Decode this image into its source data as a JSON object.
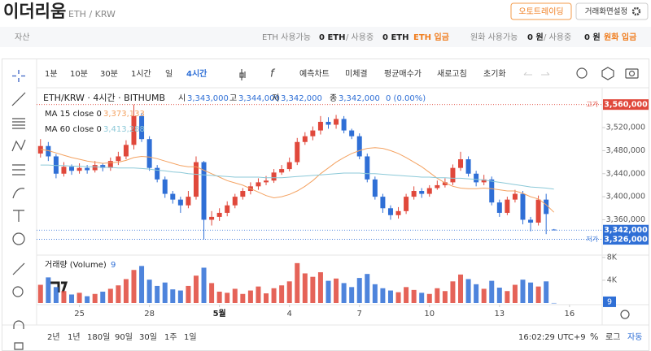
{
  "header": {
    "title": "이더리움",
    "pair": "ETH / KRW",
    "buttons": [
      "오토트레이딩",
      "거래화면설정"
    ]
  },
  "assets": {
    "label": "자산",
    "items": [
      "ETH 사용가능",
      "0 ETH",
      "/ 사용중",
      "0 ETH",
      "ETH 입금",
      "원화 사용가능",
      "0 원",
      "/ 사용중",
      "0 원",
      "원화 입금"
    ]
  },
  "toolbar": {
    "intervals": [
      "1분",
      "10분",
      "30분",
      "1시간",
      "일",
      "4시간"
    ],
    "active": 5,
    "actions": [
      "예측차트",
      "미체결",
      "평균매수가",
      "새로고침",
      "초기화"
    ]
  },
  "ranges": [
    "2년",
    "1년",
    "180일",
    "90일",
    "30일",
    "1주",
    "1일"
  ],
  "footer": {
    "time": "16:02:29 UTC+9",
    "percent": "%",
    "log": "로그",
    "auto": "자동"
  },
  "chart_data": {
    "type": "candlestick",
    "title": "ETH/KRW · 4시간 · BITHUMB",
    "ohlc_legend": [
      {
        "label": "시",
        "value": "3,343,000"
      },
      {
        "label": "고",
        "value": "3,344,000"
      },
      {
        "label": "저",
        "value": "3,342,000"
      },
      {
        "label": "종",
        "value": "3,342,000"
      }
    ],
    "change": "0 (0.00%)",
    "up_color": "#e0483b",
    "down_color": "#2f6fd6",
    "open": [
      3475000,
      3488000,
      3470000,
      3440000,
      3452000,
      3445000,
      3450000,
      3446000,
      3455000,
      3450000,
      3462000,
      3470000,
      3490000,
      3540000,
      3500000,
      3450000,
      3430000,
      3405000,
      3395000,
      3385000,
      3400000,
      3460000,
      3360000,
      3365000,
      3372000,
      3385000,
      3400000,
      3410000,
      3418000,
      3425000,
      3428000,
      3442000,
      3448000,
      3460000,
      3495000,
      3505000,
      3515000,
      3530000,
      3525000,
      3535000,
      3515000,
      3505000,
      3470000,
      3430000,
      3400000,
      3380000,
      3368000,
      3375000,
      3400000,
      3410000,
      3405000,
      3415000,
      3420000,
      3425000,
      3450000,
      3465000,
      3440000,
      3425000,
      3430000,
      3390000,
      3372000,
      3395000,
      3405000,
      3360000,
      3355000,
      3395000,
      3343000
    ],
    "high": [
      3500000,
      3495000,
      3474000,
      3460000,
      3456000,
      3458000,
      3455000,
      3462000,
      3458000,
      3468000,
      3478000,
      3498000,
      3560000,
      3545000,
      3505000,
      3455000,
      3435000,
      3410000,
      3400000,
      3410000,
      3470000,
      3462000,
      3375000,
      3380000,
      3392000,
      3405000,
      3415000,
      3425000,
      3432000,
      3436000,
      3448000,
      3455000,
      3468000,
      3502000,
      3512000,
      3522000,
      3540000,
      3538000,
      3542000,
      3540000,
      3518000,
      3510000,
      3475000,
      3435000,
      3405000,
      3385000,
      3382000,
      3405000,
      3418000,
      3415000,
      3420000,
      3428000,
      3432000,
      3456000,
      3478000,
      3470000,
      3445000,
      3438000,
      3435000,
      3395000,
      3400000,
      3412000,
      3410000,
      3365000,
      3402000,
      3405000,
      3344000
    ],
    "low": [
      3468000,
      3462000,
      3432000,
      3435000,
      3438000,
      3440000,
      3440000,
      3442000,
      3444000,
      3445000,
      3455000,
      3465000,
      3482000,
      3495000,
      3445000,
      3425000,
      3398000,
      3388000,
      3372000,
      3380000,
      3395000,
      3326000,
      3350000,
      3358000,
      3366000,
      3380000,
      3395000,
      3404000,
      3412000,
      3420000,
      3424000,
      3438000,
      3444000,
      3455000,
      3490000,
      3498000,
      3508000,
      3518000,
      3518000,
      3510000,
      3500000,
      3465000,
      3425000,
      3395000,
      3372000,
      3360000,
      3362000,
      3370000,
      3395000,
      3398000,
      3400000,
      3412000,
      3416000,
      3420000,
      3445000,
      3435000,
      3418000,
      3420000,
      3385000,
      3365000,
      3368000,
      3390000,
      3352000,
      3340000,
      3350000,
      3335000,
      3342000
    ],
    "close": [
      3488000,
      3470000,
      3440000,
      3452000,
      3445000,
      3450000,
      3446000,
      3455000,
      3450000,
      3462000,
      3470000,
      3490000,
      3540000,
      3500000,
      3450000,
      3430000,
      3405000,
      3395000,
      3385000,
      3400000,
      3460000,
      3360000,
      3365000,
      3372000,
      3385000,
      3400000,
      3410000,
      3418000,
      3425000,
      3428000,
      3442000,
      3448000,
      3460000,
      3495000,
      3505000,
      3515000,
      3530000,
      3525000,
      3535000,
      3515000,
      3505000,
      3470000,
      3430000,
      3400000,
      3380000,
      3368000,
      3375000,
      3400000,
      3410000,
      3405000,
      3415000,
      3420000,
      3425000,
      3450000,
      3465000,
      3440000,
      3425000,
      3430000,
      3390000,
      3372000,
      3395000,
      3405000,
      3360000,
      3355000,
      3395000,
      3370000,
      3342000
    ],
    "xlim": [
      -0.5,
      72.2
    ],
    "xticks": [
      {
        "value": 5,
        "label": "25"
      },
      {
        "value": 14,
        "label": "28"
      },
      {
        "value": 23,
        "label": "5월",
        "bold": true
      },
      {
        "value": 32,
        "label": "4"
      },
      {
        "value": 41,
        "label": "7"
      },
      {
        "value": 50,
        "label": "10"
      },
      {
        "value": 59,
        "label": "13"
      },
      {
        "value": 68,
        "label": "16"
      }
    ],
    "ylim": [
      3300000,
      3580000
    ],
    "yticks": [
      {
        "value": 3360000,
        "label": "3,360,000"
      },
      {
        "value": 3400000,
        "label": "3,400,000"
      },
      {
        "value": 3440000,
        "label": "3,440,000"
      },
      {
        "value": 3480000,
        "label": "3,480,000"
      },
      {
        "value": 3520000,
        "label": "3,520,000"
      }
    ],
    "grid": false,
    "ma": [
      {
        "name": "MA 15 close 0",
        "color": "#f4a261",
        "last_label": "3,373,133",
        "values": [
          3482000,
          3480000,
          3476000,
          3472000,
          3468000,
          3465000,
          3462000,
          3460000,
          3458000,
          3459000,
          3460000,
          3463000,
          3468000,
          3470000,
          3469000,
          3466000,
          3462000,
          3458000,
          3454000,
          3452000,
          3452000,
          3446000,
          3440000,
          3434000,
          3428000,
          3424000,
          3420000,
          3414000,
          3408000,
          3402000,
          3398000,
          3400000,
          3404000,
          3410000,
          3418000,
          3428000,
          3440000,
          3450000,
          3460000,
          3468000,
          3475000,
          3480000,
          3484000,
          3485000,
          3484000,
          3480000,
          3475000,
          3468000,
          3460000,
          3452000,
          3442000,
          3432000,
          3424000,
          3418000,
          3415000,
          3414000,
          3414000,
          3415000,
          3414000,
          3412000,
          3410000,
          3410000,
          3406000,
          3400000,
          3396000,
          3386000,
          3373133
        ]
      },
      {
        "name": "MA 60 close 0",
        "color": "#8cc9d8",
        "last_label": "3,413,288",
        "values": [
          3455000,
          3455000,
          3454000,
          3454000,
          3453000,
          3453000,
          3452000,
          3452000,
          3451000,
          3451000,
          3450000,
          3450000,
          3450000,
          3449000,
          3448000,
          3446000,
          3445000,
          3443000,
          3442000,
          3440000,
          3439000,
          3438000,
          3437000,
          3436000,
          3435000,
          3434000,
          3434000,
          3434000,
          3434000,
          3433000,
          3433000,
          3433000,
          3434000,
          3435000,
          3436000,
          3437000,
          3438000,
          3439000,
          3440000,
          3441000,
          3441000,
          3441000,
          3440000,
          3440000,
          3439000,
          3438000,
          3437000,
          3436000,
          3435000,
          3434000,
          3434000,
          3433000,
          3433000,
          3432000,
          3432000,
          3431000,
          3430000,
          3429000,
          3427000,
          3425000,
          3423000,
          3421000,
          3419000,
          3417000,
          3416000,
          3415000,
          3413288
        ]
      }
    ],
    "price_labels": [
      {
        "tag": "고가",
        "value": 3560000,
        "label": "3,560,000",
        "color": "#e0483b"
      },
      {
        "value": 3342000,
        "label": "3,342,000",
        "color": "#2f6fd6"
      },
      {
        "tag": "저가",
        "value": 3326000,
        "label": "3,326,000",
        "color": "#2f6fd6"
      }
    ],
    "volume": {
      "title": "거래량 (Volume)",
      "values": [
        3200,
        4500,
        2800,
        2100,
        1500,
        1800,
        1200,
        1600,
        2000,
        2500,
        3100,
        4200,
        5800,
        6500,
        4100,
        3000,
        3600,
        2400,
        2200,
        3000,
        4800,
        6200,
        3500,
        2000,
        1800,
        2500,
        1600,
        2200,
        2900,
        1700,
        2600,
        3100,
        3800,
        7000,
        5200,
        4600,
        5400,
        3900,
        4300,
        3500,
        2800,
        4400,
        5100,
        3300,
        2600,
        2200,
        1900,
        2800,
        2300,
        1800,
        1600,
        2600,
        2100,
        3800,
        5000,
        4200,
        3300,
        2500,
        3900,
        2700,
        2100,
        3200,
        4100,
        3600,
        2900,
        3800,
        9
      ],
      "ylim": [
        0,
        8400
      ],
      "yticks": [
        {
          "value": 4000,
          "label": "4K"
        },
        {
          "value": 8000,
          "label": "8K"
        }
      ]
    }
  }
}
